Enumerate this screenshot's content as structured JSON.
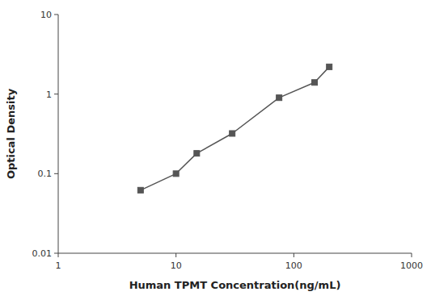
{
  "chart_data": {
    "type": "line",
    "x": [
      5,
      10,
      15,
      30,
      75,
      150,
      200
    ],
    "values": [
      0.062,
      0.1,
      0.18,
      0.32,
      0.9,
      1.4,
      2.2
    ],
    "xlabel": "Human TPMT Concentration(ng/mL)",
    "ylabel": "Optical Density",
    "xlim": [
      1,
      1000
    ],
    "ylim": [
      0.01,
      10
    ],
    "xticks": [
      1,
      10,
      100,
      1000
    ],
    "yticks": [
      0.01,
      0.1,
      1,
      10
    ],
    "log": true,
    "grid": false,
    "color": "#555555",
    "marker": "square"
  }
}
